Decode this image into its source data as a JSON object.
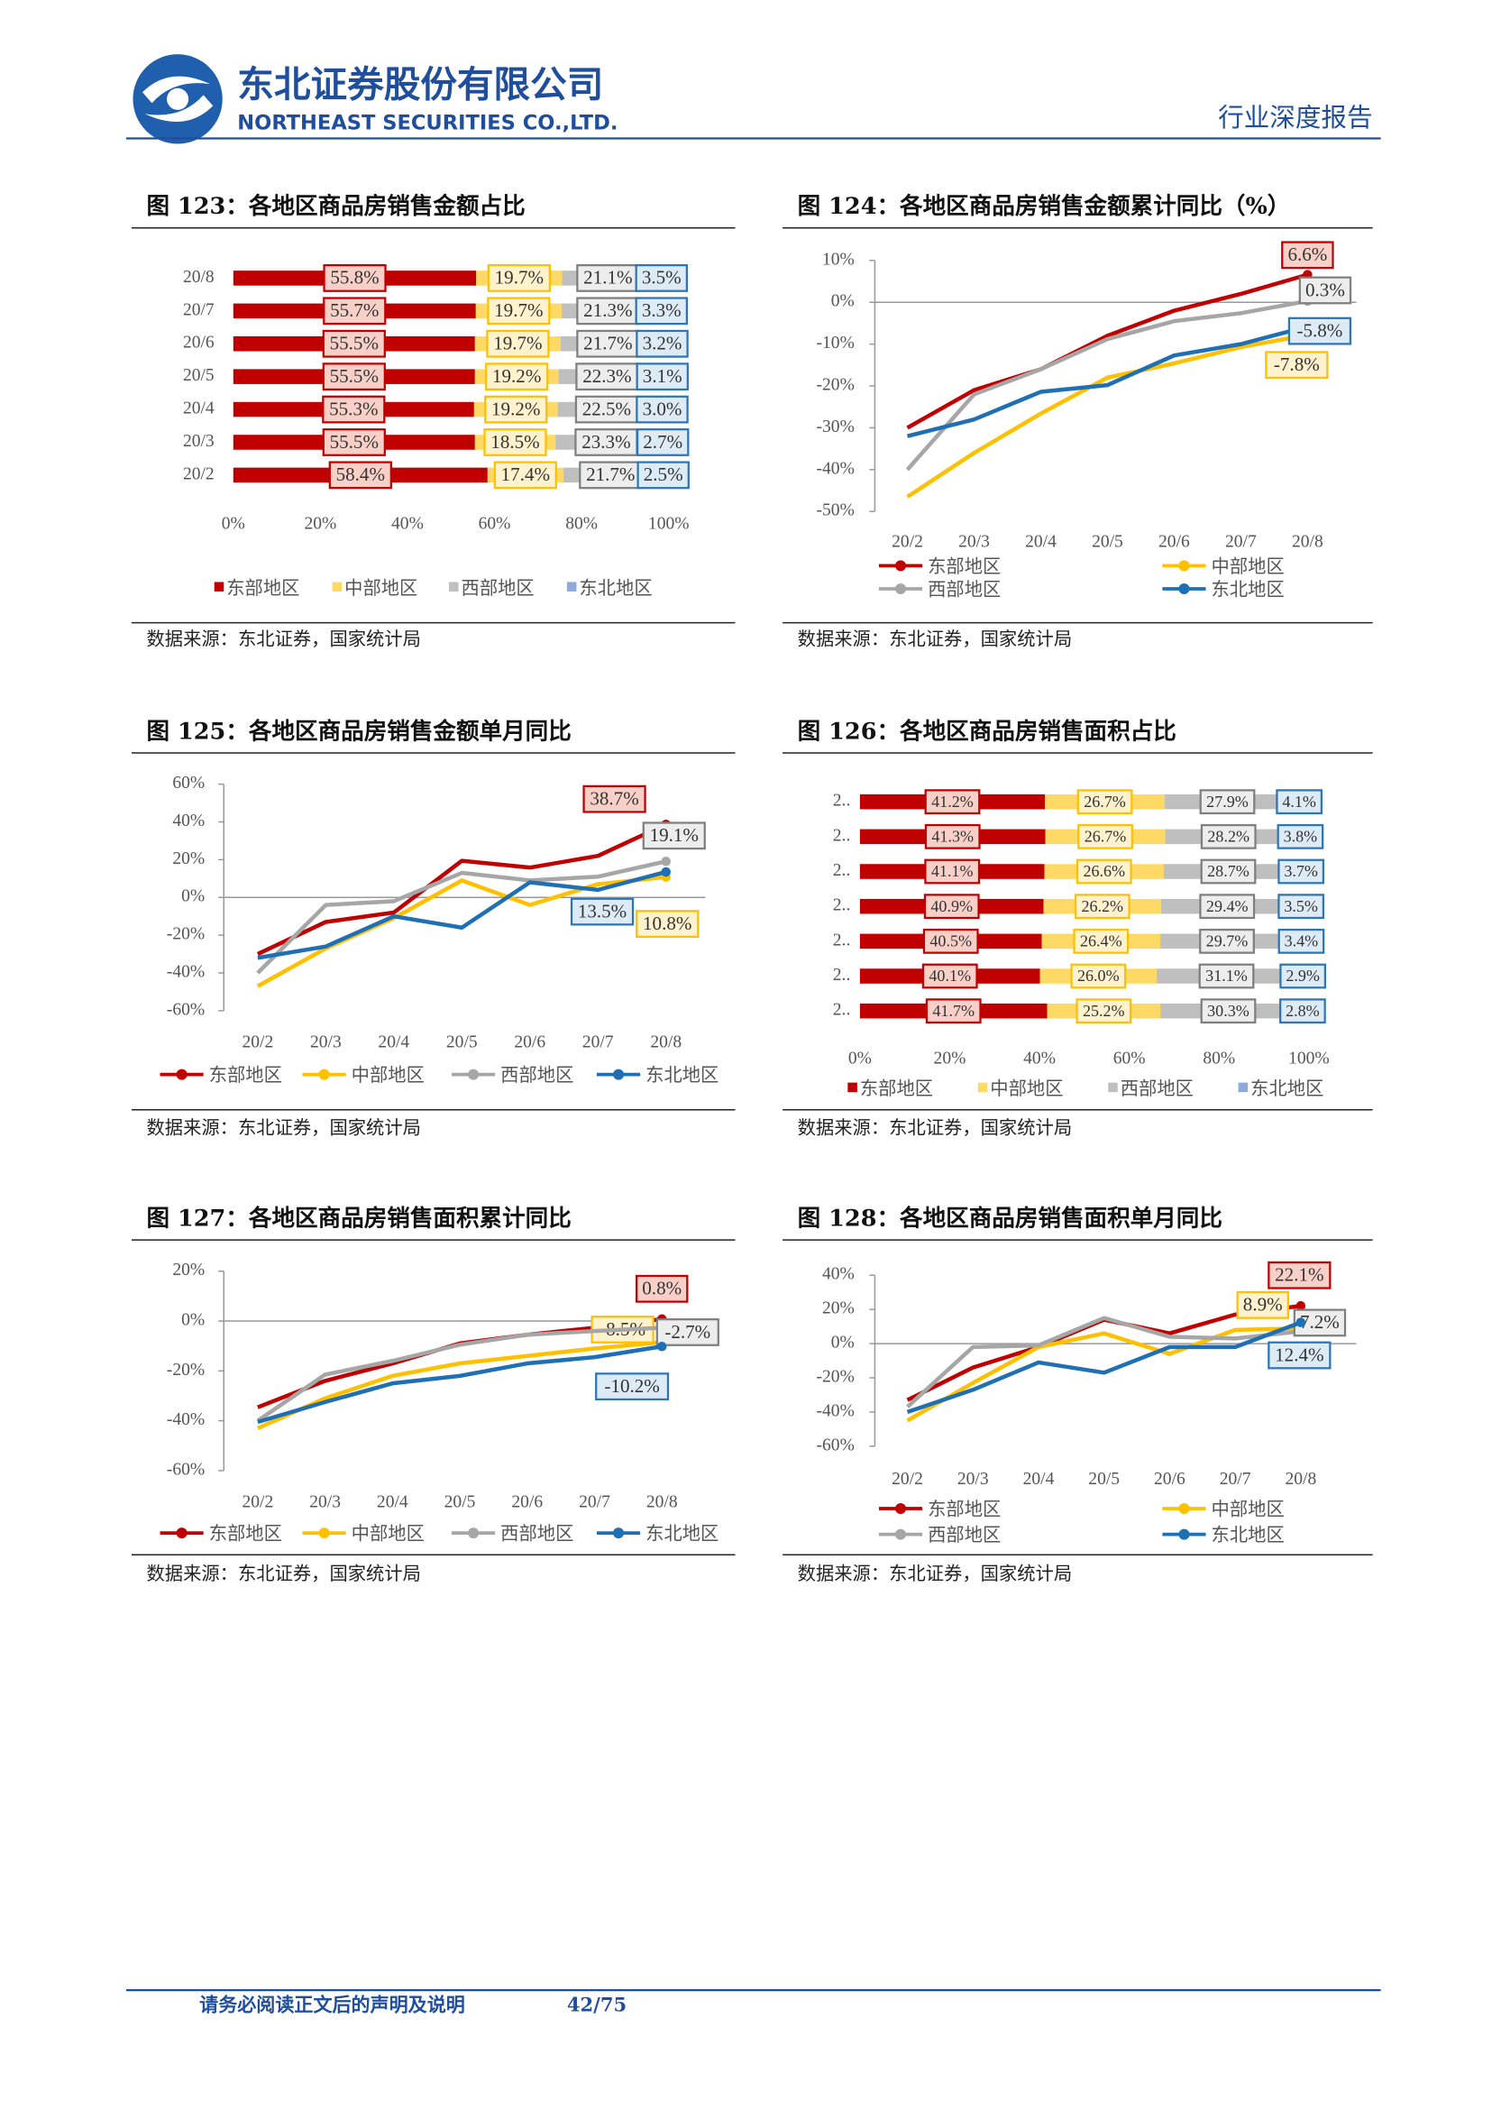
{
  "header": {
    "company_cn": "东北证券股份有限公司",
    "company_en": "NORTHEAST SECURITIES CO.,LTD.",
    "report_type": "行业深度报告"
  },
  "chart_data": [
    {
      "type": "bar",
      "horizontal": true,
      "stacked": true,
      "title": "图 123：各地区商品房销售金额占比",
      "source": "数据来源：东北证券，国家统计局",
      "categories": [
        "20/8",
        "20/7",
        "20/6",
        "20/5",
        "20/4",
        "20/3",
        "20/2"
      ],
      "series": [
        {
          "name": "东部地区",
          "color": "#c00000",
          "values": [
            55.8,
            55.7,
            55.5,
            55.5,
            55.3,
            55.5,
            58.4
          ],
          "value_labels": [
            "55.8%",
            "55.7%",
            "55.5%",
            "55.5%",
            "55.3%",
            "55.5%",
            "58.4%"
          ]
        },
        {
          "name": "中部地区",
          "color": "#ffd966",
          "values": [
            19.7,
            19.7,
            19.7,
            19.2,
            19.2,
            18.5,
            17.4
          ],
          "value_labels": [
            "19.7%",
            "19.7%",
            "19.7%",
            "19.2%",
            "19.2%",
            "18.5%",
            "17.4%"
          ]
        },
        {
          "name": "西部地区",
          "color": "#bfbfbf",
          "values": [
            21.1,
            21.3,
            21.7,
            22.3,
            22.5,
            23.3,
            21.7
          ],
          "value_labels": [
            "21.1%",
            "21.3%",
            "21.7%",
            "22.3%",
            "22.5%",
            "23.3%",
            "21.7%"
          ]
        },
        {
          "name": "东北地区",
          "color": "#8eaadb",
          "values": [
            3.5,
            3.3,
            3.2,
            3.1,
            3.0,
            2.7,
            2.5
          ],
          "value_labels": [
            "3.5%",
            "3.3%",
            "3.2%",
            "3.1%",
            "3.0%",
            "2.7%",
            "2.5%"
          ]
        }
      ],
      "xlim": [
        0,
        100
      ],
      "xticks": [
        {
          "value": 0,
          "label": "0%"
        },
        {
          "value": 20,
          "label": "20%"
        },
        {
          "value": 40,
          "label": "40%"
        },
        {
          "value": 60,
          "label": "60%"
        },
        {
          "value": 80,
          "label": "80%"
        },
        {
          "value": 100,
          "label": "100%"
        }
      ]
    },
    {
      "type": "line",
      "title": "图 124：各地区商品房销售金额累计同比（%）",
      "source": "数据来源：东北证券，国家统计局",
      "categories": [
        "20/2",
        "20/3",
        "20/4",
        "20/5",
        "20/6",
        "20/7",
        "20/8"
      ],
      "series": [
        {
          "name": "东部地区",
          "color": "#c00000",
          "values": [
            -30,
            -21,
            -16,
            -8,
            -2,
            2,
            6.6
          ],
          "value_labels": [
            null,
            null,
            null,
            null,
            null,
            null,
            "6.6%"
          ]
        },
        {
          "name": "中部地区",
          "color": "#ffc000",
          "values": [
            -46.5,
            -36,
            -26.6,
            -18,
            -14.6,
            -10.7,
            -7.8
          ],
          "value_labels": [
            null,
            null,
            null,
            null,
            null,
            null,
            "-7.8%"
          ]
        },
        {
          "name": "西部地区",
          "color": "#a6a6a6",
          "values": [
            -40,
            -22,
            -16,
            -8.8,
            -4.5,
            -2.6,
            0.3
          ],
          "value_labels": [
            null,
            null,
            null,
            null,
            null,
            null,
            "0.3%"
          ]
        },
        {
          "name": "东北地区",
          "color": "#1f6fb4",
          "values": [
            -32,
            -28,
            -21.4,
            -19.8,
            -12.7,
            -10,
            -5.8
          ],
          "value_labels": [
            null,
            null,
            null,
            null,
            null,
            null,
            "-5.8%"
          ]
        }
      ],
      "ylim": [
        -50,
        10
      ],
      "yticks": [
        {
          "value": 10,
          "label": "10%"
        },
        {
          "value": 0,
          "label": "0%"
        },
        {
          "value": -10,
          "label": "-10%"
        },
        {
          "value": -20,
          "label": "-20%"
        },
        {
          "value": -30,
          "label": "-30%"
        },
        {
          "value": -40,
          "label": "-40%"
        },
        {
          "value": -50,
          "label": "-50%"
        }
      ]
    },
    {
      "type": "line",
      "title": "图 125：各地区商品房销售金额单月同比",
      "source": "数据来源：东北证券，国家统计局",
      "categories": [
        "20/2",
        "20/3",
        "20/4",
        "20/5",
        "20/6",
        "20/7",
        "20/8"
      ],
      "series": [
        {
          "name": "东部地区",
          "color": "#c00000",
          "values": [
            -30,
            -13,
            -8,
            19.4,
            15.8,
            22,
            38.7
          ],
          "value_labels": [
            null,
            null,
            null,
            null,
            null,
            null,
            "38.7%"
          ]
        },
        {
          "name": "中部地区",
          "color": "#ffc000",
          "values": [
            -47,
            -27,
            -11,
            9,
            -4,
            7,
            10.8
          ],
          "value_labels": [
            null,
            null,
            null,
            null,
            null,
            null,
            "10.8%"
          ]
        },
        {
          "name": "西部地区",
          "color": "#a6a6a6",
          "values": [
            -40,
            -4,
            -2,
            13,
            9,
            11,
            19.1
          ],
          "value_labels": [
            null,
            null,
            null,
            null,
            null,
            null,
            "19.1%"
          ]
        },
        {
          "name": "东北地区",
          "color": "#1f6fb4",
          "values": [
            -32,
            -26,
            -10,
            -16,
            8,
            4,
            13.5
          ],
          "value_labels": [
            null,
            null,
            null,
            null,
            null,
            null,
            "13.5%"
          ]
        }
      ],
      "ylim": [
        -60,
        60
      ],
      "yticks": [
        {
          "value": 60,
          "label": "60%"
        },
        {
          "value": 40,
          "label": "40%"
        },
        {
          "value": 20,
          "label": "20%"
        },
        {
          "value": 0,
          "label": "0%"
        },
        {
          "value": -20,
          "label": "-20%"
        },
        {
          "value": -40,
          "label": "-40%"
        },
        {
          "value": -60,
          "label": "-60%"
        }
      ]
    },
    {
      "type": "bar",
      "horizontal": true,
      "stacked": true,
      "title": "图 126：各地区商品房销售面积占比",
      "source": "数据来源：东北证券，国家统计局",
      "categories": [
        "2..",
        "2..",
        "2..",
        "2..",
        "2..",
        "2..",
        "2.."
      ],
      "series": [
        {
          "name": "东部地区",
          "color": "#c00000",
          "values": [
            41.2,
            41.3,
            41.1,
            40.9,
            40.5,
            40.1,
            41.7
          ],
          "value_labels": [
            "41.2%",
            "41.3%",
            "41.1%",
            "40.9%",
            "40.5%",
            "40.1%",
            "41.7%"
          ]
        },
        {
          "name": "中部地区",
          "color": "#ffd966",
          "values": [
            26.7,
            26.7,
            26.6,
            26.2,
            26.4,
            26.0,
            25.2
          ],
          "value_labels": [
            "26.7%",
            "26.7%",
            "26.6%",
            "26.2%",
            "26.4%",
            "26.0%",
            "25.2%"
          ]
        },
        {
          "name": "西部地区",
          "color": "#bfbfbf",
          "values": [
            27.9,
            28.2,
            28.7,
            29.4,
            29.7,
            31.1,
            30.3
          ],
          "value_labels": [
            "27.9%",
            "28.2%",
            "28.7%",
            "29.4%",
            "29.7%",
            "31.1%",
            "30.3%"
          ]
        },
        {
          "name": "东北地区",
          "color": "#8eaadb",
          "values": [
            4.1,
            3.8,
            3.7,
            3.5,
            3.4,
            2.9,
            2.8
          ],
          "value_labels": [
            "4.1%",
            "3.8%",
            "3.7%",
            "3.5%",
            "3.4%",
            "2.9%",
            "2.8%"
          ]
        }
      ],
      "xlim": [
        0,
        100
      ],
      "xticks": [
        {
          "value": 0,
          "label": "0%"
        },
        {
          "value": 20,
          "label": "20%"
        },
        {
          "value": 40,
          "label": "40%"
        },
        {
          "value": 60,
          "label": "60%"
        },
        {
          "value": 80,
          "label": "80%"
        },
        {
          "value": 100,
          "label": "100%"
        }
      ]
    },
    {
      "type": "line",
      "title": "图 127：各地区商品房销售面积累计同比",
      "source": "数据来源：东北证券，国家统计局",
      "categories": [
        "20/2",
        "20/3",
        "20/4",
        "20/5",
        "20/6",
        "20/7",
        "20/8"
      ],
      "series": [
        {
          "name": "东部地区",
          "color": "#c00000",
          "values": [
            -34.6,
            -24,
            -17,
            -9,
            -5.5,
            -2.7,
            0.8
          ],
          "value_labels": [
            null,
            null,
            null,
            null,
            null,
            null,
            "0.8%"
          ]
        },
        {
          "name": "中部地区",
          "color": "#ffc000",
          "values": [
            -43,
            -31,
            -22,
            -17,
            -14,
            -11,
            -8.5
          ],
          "value_labels": [
            null,
            null,
            null,
            null,
            null,
            null,
            "-8.5%"
          ]
        },
        {
          "name": "西部地区",
          "color": "#a6a6a6",
          "values": [
            -40,
            -21.5,
            -16,
            -9.5,
            -5.5,
            -4,
            -2.7
          ],
          "value_labels": [
            null,
            null,
            null,
            null,
            null,
            null,
            "-2.7%"
          ]
        },
        {
          "name": "东北地区",
          "color": "#1f6fb4",
          "values": [
            -40.5,
            -32.5,
            -25,
            -22,
            -17,
            -14.5,
            -10.2
          ],
          "value_labels": [
            null,
            null,
            null,
            null,
            null,
            null,
            "-10.2%"
          ]
        }
      ],
      "ylim": [
        -60,
        20
      ],
      "yticks": [
        {
          "value": 20,
          "label": "20%"
        },
        {
          "value": 0,
          "label": "0%"
        },
        {
          "value": -20,
          "label": "-20%"
        },
        {
          "value": -40,
          "label": "-40%"
        },
        {
          "value": -60,
          "label": "-60%"
        }
      ]
    },
    {
      "type": "line",
      "title": "图 128：各地区商品房销售面积单月同比",
      "source": "数据来源：东北证券，国家统计局",
      "categories": [
        "20/2",
        "20/3",
        "20/4",
        "20/5",
        "20/6",
        "20/7",
        "20/8"
      ],
      "series": [
        {
          "name": "东部地区",
          "color": "#c00000",
          "values": [
            -33,
            -14,
            -2,
            14,
            6,
            17,
            22.1
          ],
          "value_labels": [
            null,
            null,
            null,
            null,
            null,
            null,
            "22.1%"
          ]
        },
        {
          "name": "中部地区",
          "color": "#ffc000",
          "values": [
            -45,
            -23,
            -2,
            6,
            -6,
            8,
            8.9
          ],
          "value_labels": [
            null,
            null,
            null,
            null,
            null,
            null,
            "8.9%"
          ]
        },
        {
          "name": "西部地区",
          "color": "#a6a6a6",
          "values": [
            -37,
            -2,
            -1,
            15,
            4,
            3,
            7.2
          ],
          "value_labels": [
            null,
            null,
            null,
            null,
            null,
            null,
            "7.2%"
          ]
        },
        {
          "name": "东北地区",
          "color": "#1f6fb4",
          "values": [
            -40,
            -27,
            -11,
            -17,
            -2,
            -2,
            12.4
          ],
          "value_labels": [
            null,
            null,
            null,
            null,
            null,
            null,
            "12.4%"
          ]
        }
      ],
      "ylim": [
        -60,
        40
      ],
      "yticks": [
        {
          "value": 40,
          "label": "40%"
        },
        {
          "value": 20,
          "label": "20%"
        },
        {
          "value": 0,
          "label": "0%"
        },
        {
          "value": -20,
          "label": "-20%"
        },
        {
          "value": -40,
          "label": "-40%"
        },
        {
          "value": -60,
          "label": "-60%"
        }
      ]
    }
  ],
  "footer": {
    "disclaimer": "请务必阅读正文后的声明及说明",
    "page": "42/75"
  }
}
